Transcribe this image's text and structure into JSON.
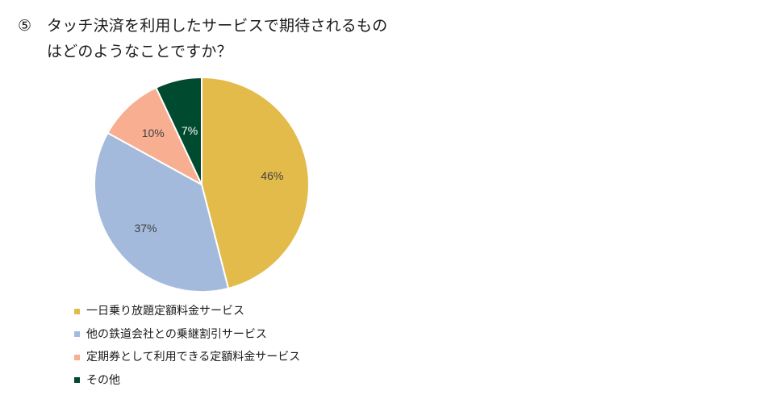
{
  "title": {
    "number": "⑤",
    "line1": "タッチ決済を利用したサービスで期待されるもの",
    "line2": "はどのようなことですか？"
  },
  "chart_data": {
    "type": "pie",
    "categories": [
      "一日乗り放題定額料金サービス",
      "他の鉄道会社との乗継割引サービス",
      "定期券として利用できる定額料金サービス",
      "その他"
    ],
    "values": [
      46,
      37,
      10,
      7
    ],
    "labels": [
      "46%",
      "37%",
      "10%",
      "7%"
    ],
    "colors": [
      "#E3BB4A",
      "#A4BADC",
      "#F8AE91",
      "#004A2F"
    ],
    "label_colors": [
      "#404040",
      "#404040",
      "#404040",
      "#ffffff"
    ],
    "legend_position": "bottom-left",
    "start_angle": "12 o'clock",
    "direction": "clockwise"
  }
}
